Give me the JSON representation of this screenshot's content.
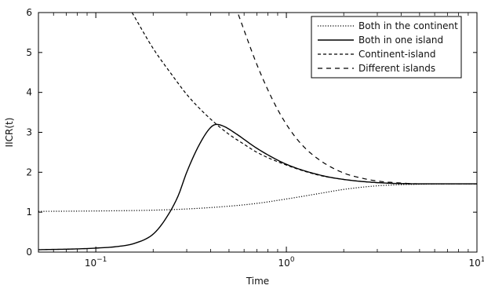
{
  "chart_data": {
    "type": "line",
    "xlabel": "Time",
    "ylabel": "IICR(t)",
    "xscale": "log",
    "xlim": [
      0.05,
      10
    ],
    "ylim": [
      0,
      6
    ],
    "x_ticks": [
      {
        "base": "10",
        "exp": "−1",
        "value": 0.1
      },
      {
        "base": "10",
        "exp": "0",
        "value": 1
      },
      {
        "base": "10",
        "exp": "1",
        "value": 10
      }
    ],
    "y_ticks": [
      "0",
      "1",
      "2",
      "3",
      "4",
      "5",
      "6"
    ],
    "legend_position": "top-right",
    "grid": false,
    "series": [
      {
        "name": "Both in the continent",
        "style": "dotted",
        "x": [
          0.05,
          0.1,
          0.2,
          0.3,
          0.5,
          0.7,
          1.0,
          1.5,
          2.0,
          3.0,
          5.0,
          10.0
        ],
        "y": [
          1.02,
          1.03,
          1.05,
          1.08,
          1.15,
          1.22,
          1.33,
          1.47,
          1.57,
          1.66,
          1.7,
          1.71
        ]
      },
      {
        "name": "Both in one island",
        "style": "solid",
        "x": [
          0.05,
          0.08,
          0.1,
          0.13,
          0.16,
          0.2,
          0.23,
          0.27,
          0.3,
          0.35,
          0.4,
          0.43,
          0.47,
          0.55,
          0.7,
          1.0,
          1.5,
          2.0,
          3.0,
          5.0,
          10.0
        ],
        "y": [
          0.06,
          0.08,
          0.1,
          0.14,
          0.22,
          0.45,
          0.8,
          1.4,
          2.0,
          2.7,
          3.12,
          3.2,
          3.15,
          2.95,
          2.6,
          2.2,
          1.93,
          1.82,
          1.74,
          1.71,
          1.71
        ]
      },
      {
        "name": "Continent-island",
        "style": "dashed",
        "x": [
          0.155,
          0.2,
          0.25,
          0.3,
          0.35,
          0.43,
          0.5,
          0.6,
          0.7,
          1.0,
          1.5,
          2.0,
          3.0,
          5.0,
          10.0
        ],
        "y": [
          6.0,
          5.1,
          4.45,
          3.95,
          3.6,
          3.2,
          2.95,
          2.7,
          2.5,
          2.18,
          1.92,
          1.82,
          1.74,
          1.71,
          1.71
        ]
      },
      {
        "name": "Different islands",
        "style": "dashed-long",
        "x": [
          0.56,
          0.7,
          0.85,
          1.0,
          1.2,
          1.5,
          2.0,
          2.5,
          3.0,
          4.0,
          5.0,
          7.0,
          10.0
        ],
        "y": [
          5.95,
          4.7,
          3.8,
          3.2,
          2.7,
          2.3,
          1.98,
          1.85,
          1.78,
          1.73,
          1.71,
          1.71,
          1.71
        ]
      }
    ]
  }
}
